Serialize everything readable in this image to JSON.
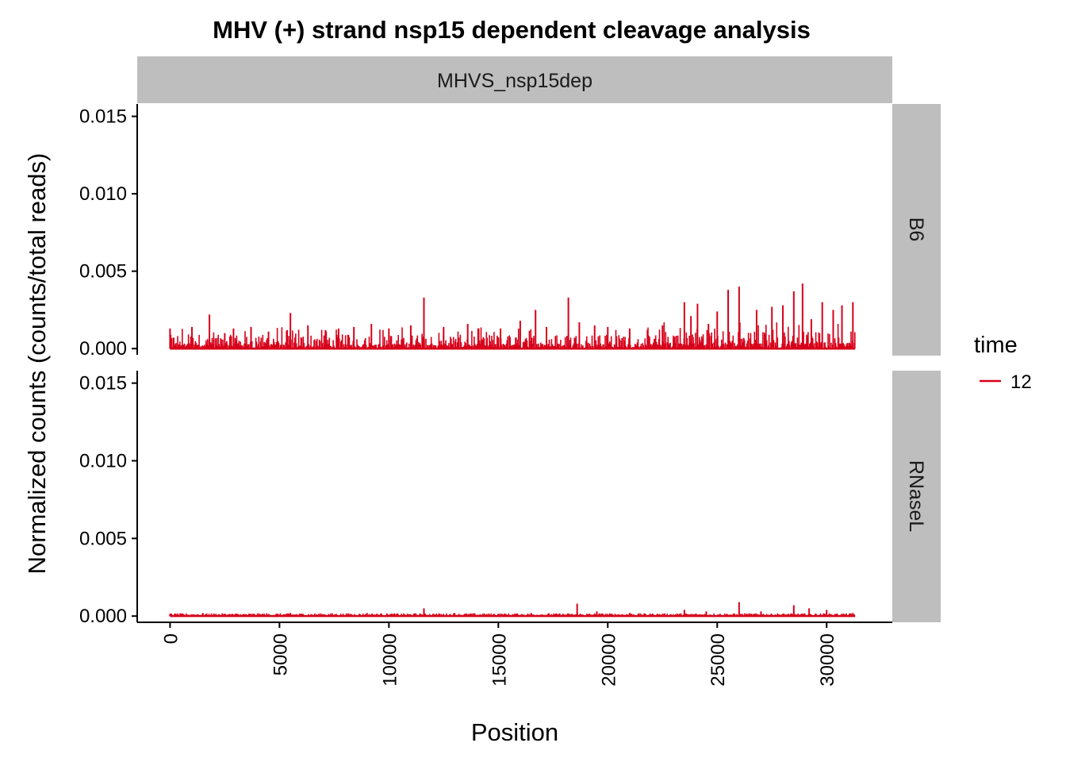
{
  "chart_data": {
    "type": "line",
    "title": "MHV (+) strand nsp15 dependent cleavage analysis",
    "xlabel": "Position",
    "ylabel": "Normalized counts (counts/total reads)",
    "column_facet": "MHVS_nsp15dep",
    "row_facets": [
      "B6",
      "RNaseL"
    ],
    "xlim": [
      -1500,
      33000
    ],
    "ylim": [
      -0.0004,
      0.0158
    ],
    "x_ticks": [
      0,
      5000,
      10000,
      15000,
      20000,
      25000,
      30000
    ],
    "x_tick_labels": [
      "0",
      "5000",
      "10000",
      "15000",
      "20000",
      "25000",
      "30000"
    ],
    "y_ticks": [
      0,
      0.005,
      0.01,
      0.015
    ],
    "y_tick_labels": [
      "0.000",
      "0.005",
      "0.010",
      "0.015"
    ],
    "legend": {
      "title": "time",
      "placement": "right",
      "entries": [
        {
          "label": "12",
          "color": "#d7001a"
        }
      ]
    },
    "series_color": "#d7001a",
    "grid": false,
    "panels": [
      {
        "facet": "B6",
        "x": [
          0,
          1000,
          1800,
          2500,
          2900,
          3700,
          4500,
          5500,
          6300,
          7100,
          7700,
          8400,
          9200,
          10000,
          11000,
          11600,
          12500,
          13600,
          14100,
          15100,
          16000,
          16700,
          17200,
          18200,
          18700,
          19400,
          20000,
          21000,
          22500,
          23500,
          23800,
          24100,
          24600,
          25000,
          25500,
          26000,
          26800,
          27500,
          28000,
          28500,
          28900,
          29300,
          29800,
          30300,
          30700,
          31200
        ],
        "y": [
          0.0013,
          0.0014,
          0.0022,
          0.001,
          0.0013,
          0.0014,
          0.0011,
          0.0023,
          0.0015,
          0.0012,
          0.0013,
          0.0014,
          0.0016,
          0.0013,
          0.0015,
          0.0033,
          0.0014,
          0.0016,
          0.0013,
          0.0013,
          0.0018,
          0.0025,
          0.0014,
          0.0033,
          0.0017,
          0.0015,
          0.0014,
          0.0013,
          0.0015,
          0.003,
          0.0021,
          0.0029,
          0.0016,
          0.0024,
          0.0038,
          0.004,
          0.0025,
          0.0027,
          0.0028,
          0.0037,
          0.0042,
          0.0019,
          0.003,
          0.0025,
          0.0028,
          0.003
        ]
      },
      {
        "facet": "RNaseL",
        "x": [
          0,
          1500,
          3000,
          5500,
          7000,
          9000,
          11600,
          13000,
          15000,
          16500,
          18600,
          19500,
          21000,
          23500,
          24500,
          26000,
          27000,
          28500,
          29200,
          30000,
          31200
        ],
        "y": [
          0.00015,
          0.0002,
          0.00015,
          0.0002,
          0.00012,
          0.0002,
          0.0005,
          0.0002,
          0.00015,
          0.0002,
          0.0008,
          0.0003,
          0.0002,
          0.0004,
          0.0003,
          0.0009,
          0.0003,
          0.0007,
          0.0005,
          0.0004,
          0.0002
        ]
      }
    ]
  }
}
